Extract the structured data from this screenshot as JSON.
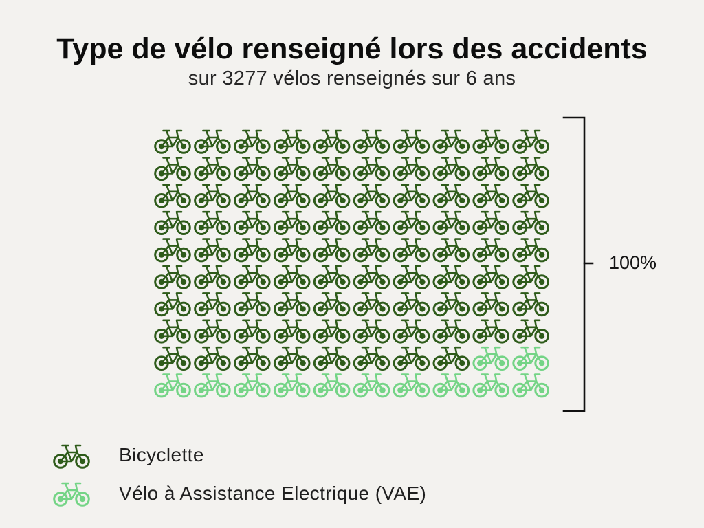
{
  "background": "#f3f2ef",
  "chart_data": {
    "type": "pie",
    "title": "Type de vélo renseigné lors des accidents",
    "subtitle": "sur 3277 vélos renseignés sur 6 ans",
    "categories": [
      "Bicyclette",
      "Vélo à Assistance Electrique (VAE)"
    ],
    "values": [
      88,
      12
    ],
    "colors": [
      "#2e5b1a",
      "#74d486"
    ],
    "icon": "bicycle-icon",
    "annotation": "100%",
    "legend_position": "bottom-left"
  }
}
